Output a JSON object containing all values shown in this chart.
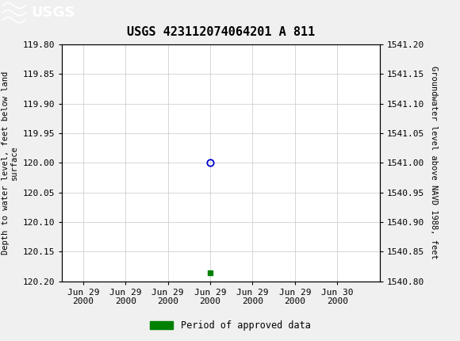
{
  "title": "USGS 423112074064201 A 811",
  "title_fontsize": 11,
  "title_fontweight": "bold",
  "header_color": "#1a6b3c",
  "usgs_text": "USGS",
  "ylabel_left": "Depth to water level, feet below land\nsurface",
  "ylabel_right": "Groundwater level above NAVD 1988, feet",
  "ylim_left_top": 119.8,
  "ylim_left_bottom": 120.2,
  "ylim_right_bottom": 1540.8,
  "ylim_right_top": 1541.2,
  "yticks_left": [
    119.8,
    119.85,
    119.9,
    119.95,
    120.0,
    120.05,
    120.1,
    120.15,
    120.2
  ],
  "yticks_right": [
    1540.8,
    1540.85,
    1540.9,
    1540.95,
    1541.0,
    1541.05,
    1541.1,
    1541.15,
    1541.2
  ],
  "ytick_labels_left": [
    "119.80",
    "119.85",
    "119.90",
    "119.95",
    "120.00",
    "120.05",
    "120.10",
    "120.15",
    "120.20"
  ],
  "ytick_labels_right": [
    "1540.80",
    "1540.85",
    "1540.90",
    "1540.95",
    "1541.00",
    "1541.05",
    "1541.10",
    "1541.15",
    "1541.20"
  ],
  "data_point_x": 3.0,
  "data_point_y": 120.0,
  "data_point_color": "#0000cc",
  "approved_point_x": 3.0,
  "approved_point_y": 120.185,
  "approved_color": "#008000",
  "grid_color": "#c8c8c8",
  "axis_bg_color": "#ffffff",
  "figure_bg_color": "#f0f0f0",
  "tick_fontsize": 8,
  "label_fontsize": 7.5,
  "legend_label": "Period of approved data",
  "xlim": [
    -0.5,
    7.0
  ],
  "xtick_positions": [
    0,
    1,
    2,
    3,
    4,
    5,
    6
  ],
  "xtick_labels": [
    "Jun 29\n2000",
    "Jun 29\n2000",
    "Jun 29\n2000",
    "Jun 29\n2000",
    "Jun 29\n2000",
    "Jun 29\n2000",
    "Jun 30\n2000"
  ]
}
